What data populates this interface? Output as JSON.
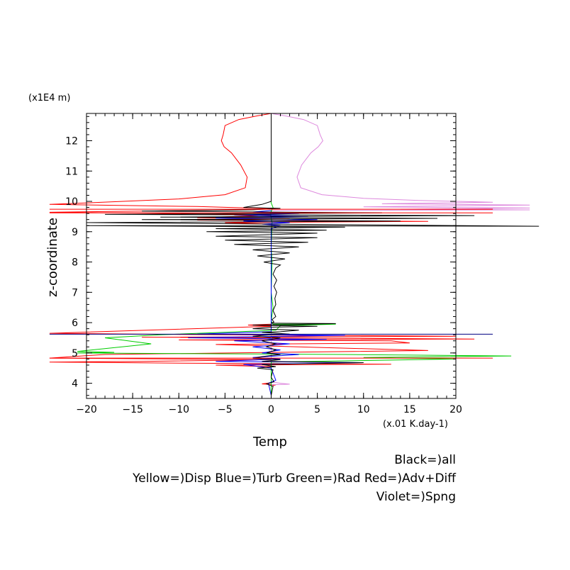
{
  "chart_data": {
    "type": "line",
    "y_unit_label": "(x1E4 m)",
    "x_unit_label": "(x.01 K.day-1)",
    "xlabel": "Temp",
    "ylabel": "z-coordinate",
    "xlim": [
      -20,
      20
    ],
    "ylim": [
      3.5,
      12.9
    ],
    "x_ticks": [
      "−20",
      "−15",
      "−10",
      "−5",
      "0",
      "5",
      "10",
      "15",
      "20"
    ],
    "x_tick_values": [
      -20,
      -15,
      -10,
      -5,
      0,
      5,
      10,
      15,
      20
    ],
    "y_ticks": [
      "4",
      "5",
      "6",
      "7",
      "8",
      "9",
      "10",
      "11",
      "12"
    ],
    "y_tick_values": [
      4,
      5,
      6,
      7,
      8,
      9,
      10,
      11,
      12
    ],
    "legend_lines": [
      "Black=)all",
      "Yellow=)Disp Blue=)Turb Green=)Rad Red=)Adv+Diff",
      "Violet=)Spng"
    ],
    "colors": {
      "all": "#000000",
      "turb": "#0000ff",
      "rad": "#00cc00",
      "adv": "#ff0000",
      "spng": "#dd88dd"
    },
    "series": [
      {
        "key": "adv",
        "color": "#ff0000",
        "points": [
          [
            0,
            12.9
          ],
          [
            -1.5,
            12.82
          ],
          [
            -3.5,
            12.7
          ],
          [
            -5,
            12.5
          ],
          [
            -5.2,
            12.2
          ],
          [
            -5.4,
            12.0
          ],
          [
            -5.1,
            11.8
          ],
          [
            -4.3,
            11.6
          ],
          [
            -3.3,
            11.2
          ],
          [
            -2.6,
            10.8
          ],
          [
            -2.8,
            10.45
          ],
          [
            -5,
            10.22
          ],
          [
            -10,
            10.08
          ],
          [
            -16,
            10.0
          ],
          [
            -20,
            9.95
          ],
          [
            -24,
            9.9
          ],
          [
            -8,
            9.83
          ],
          [
            0,
            9.76
          ],
          [
            -3,
            9.72
          ],
          [
            -14,
            9.68
          ],
          [
            -24,
            9.64
          ],
          [
            -10,
            9.6
          ],
          [
            0,
            9.55
          ],
          [
            -4,
            9.5
          ],
          [
            -8,
            9.46
          ],
          [
            2,
            9.42
          ],
          [
            -8,
            9.38
          ],
          [
            17,
            9.34
          ],
          [
            -5,
            9.3
          ],
          [
            0,
            9.25
          ],
          [
            0,
            5.95
          ],
          [
            -2.5,
            5.92
          ],
          [
            0,
            5.88
          ],
          [
            -24,
            5.65
          ],
          [
            -10,
            5.61
          ],
          [
            20,
            5.55
          ],
          [
            -14,
            5.52
          ],
          [
            22,
            5.46
          ],
          [
            -10,
            5.43
          ],
          [
            13,
            5.4
          ],
          [
            15,
            5.33
          ],
          [
            -6,
            5.28
          ],
          [
            17,
            5.08
          ],
          [
            -18,
            4.95
          ],
          [
            -24,
            4.83
          ],
          [
            0,
            4.78
          ],
          [
            -14,
            4.72
          ],
          [
            -24,
            4.7
          ],
          [
            -8,
            4.66
          ],
          [
            13,
            4.63
          ],
          [
            -6,
            4.6
          ],
          [
            0,
            4.55
          ],
          [
            0,
            4.02
          ],
          [
            -1,
            3.98
          ],
          [
            0.5,
            3.95
          ],
          [
            0,
            3.9
          ]
        ]
      },
      {
        "key": "spng",
        "color": "#dd88dd",
        "points": [
          [
            0,
            12.9
          ],
          [
            1.5,
            12.82
          ],
          [
            3.5,
            12.7
          ],
          [
            5,
            12.5
          ],
          [
            5.3,
            12.2
          ],
          [
            5.6,
            12.0
          ],
          [
            5.1,
            11.8
          ],
          [
            4.3,
            11.6
          ],
          [
            3.3,
            11.2
          ],
          [
            2.8,
            10.8
          ],
          [
            3.2,
            10.45
          ],
          [
            5.5,
            10.22
          ],
          [
            10,
            10.1
          ],
          [
            16,
            10.03
          ],
          [
            24,
            9.97
          ],
          [
            12,
            9.92
          ],
          [
            28,
            9.88
          ],
          [
            10,
            9.82
          ],
          [
            28,
            9.78
          ],
          [
            14,
            9.74
          ],
          [
            28,
            9.72
          ],
          [
            0,
            9.7
          ],
          [
            0,
            4.05
          ],
          [
            1,
            4.0
          ],
          [
            2,
            3.97
          ],
          [
            0,
            3.95
          ]
        ]
      },
      {
        "key": "rad",
        "color": "#00cc00",
        "points": [
          [
            0,
            12.9
          ],
          [
            0,
            9.95
          ],
          [
            0.2,
            9.8
          ],
          [
            -0.1,
            9.6
          ],
          [
            0.1,
            9.3
          ],
          [
            0,
            8.5
          ],
          [
            0.1,
            8.0
          ],
          [
            0,
            7.0
          ],
          [
            0.2,
            6.5
          ],
          [
            0,
            6.05
          ],
          [
            0.2,
            5.95
          ],
          [
            7,
            5.95
          ],
          [
            1,
            5.9
          ],
          [
            0.5,
            5.75
          ],
          [
            -12,
            5.6
          ],
          [
            -18,
            5.5
          ],
          [
            -13,
            5.3
          ],
          [
            -21,
            5.05
          ],
          [
            -17,
            5.02
          ],
          [
            -21,
            5.0
          ],
          [
            8,
            4.95
          ],
          [
            26,
            4.9
          ],
          [
            10,
            4.85
          ],
          [
            20,
            4.8
          ],
          [
            0,
            4.7
          ],
          [
            0,
            3.6
          ]
        ]
      },
      {
        "key": "turb",
        "color": "#0000ff",
        "points": [
          [
            0,
            9.7
          ],
          [
            -2,
            9.65
          ],
          [
            3,
            9.6
          ],
          [
            -4,
            9.55
          ],
          [
            4,
            9.5
          ],
          [
            -6,
            9.45
          ],
          [
            5,
            9.4
          ],
          [
            -3,
            9.35
          ],
          [
            2,
            9.3
          ],
          [
            -1,
            9.25
          ],
          [
            1,
            9.2
          ],
          [
            0,
            9.1
          ],
          [
            0,
            5.7
          ],
          [
            -8,
            5.62
          ],
          [
            8,
            5.58
          ],
          [
            -9,
            5.5
          ],
          [
            6,
            5.45
          ],
          [
            -4,
            5.4
          ],
          [
            2,
            5.3
          ],
          [
            -2,
            5.2
          ],
          [
            1,
            5.1
          ],
          [
            -1,
            5.0
          ],
          [
            3,
            4.95
          ],
          [
            -2,
            4.85
          ],
          [
            1,
            4.8
          ],
          [
            -6,
            4.72
          ],
          [
            10,
            4.68
          ],
          [
            -3,
            4.62
          ],
          [
            0,
            4.5
          ],
          [
            0.5,
            4.1
          ],
          [
            -0.3,
            4.0
          ],
          [
            0,
            3.6
          ]
        ]
      },
      {
        "key": "all",
        "color": "#000000",
        "points": [
          [
            0,
            12.9
          ],
          [
            0,
            10.0
          ],
          [
            -1,
            9.9
          ],
          [
            -3,
            9.8
          ],
          [
            1,
            9.77
          ],
          [
            -2,
            9.72
          ],
          [
            -14,
            9.68
          ],
          [
            12,
            9.62
          ],
          [
            -18,
            9.57
          ],
          [
            22,
            9.53
          ],
          [
            -12,
            9.48
          ],
          [
            18,
            9.44
          ],
          [
            -14,
            9.4
          ],
          [
            14,
            9.35
          ],
          [
            -20,
            9.3
          ],
          [
            29,
            9.18
          ],
          [
            -20,
            9.2
          ],
          [
            8,
            9.15
          ],
          [
            -6,
            9.1
          ],
          [
            6,
            9.05
          ],
          [
            -7,
            9.0
          ],
          [
            5,
            8.95
          ],
          [
            -6,
            8.85
          ],
          [
            5,
            8.8
          ],
          [
            -5,
            8.72
          ],
          [
            4,
            8.65
          ],
          [
            -4,
            8.58
          ],
          [
            3,
            8.5
          ],
          [
            -2,
            8.4
          ],
          [
            2,
            8.3
          ],
          [
            -1.5,
            8.2
          ],
          [
            1.5,
            8.1
          ],
          [
            -0.8,
            8.0
          ],
          [
            1,
            7.9
          ],
          [
            0.5,
            7.8
          ],
          [
            0.2,
            7.6
          ],
          [
            0.6,
            7.4
          ],
          [
            0.3,
            7.2
          ],
          [
            0.6,
            7.0
          ],
          [
            0.4,
            6.8
          ],
          [
            0.5,
            6.6
          ],
          [
            0.2,
            6.4
          ],
          [
            0.5,
            6.2
          ],
          [
            0.1,
            6.1
          ],
          [
            0.3,
            6.02
          ],
          [
            0,
            5.98
          ],
          [
            7,
            5.97
          ],
          [
            1,
            5.93
          ],
          [
            -2,
            5.92
          ],
          [
            5,
            5.88
          ],
          [
            0,
            5.85
          ],
          [
            -2,
            5.8
          ],
          [
            3,
            5.75
          ],
          [
            1,
            5.7
          ],
          [
            -1,
            5.68
          ],
          [
            2,
            5.62
          ],
          [
            0,
            5.6
          ],
          [
            -2,
            5.55
          ],
          [
            1,
            5.5
          ],
          [
            0,
            5.45
          ],
          [
            -1,
            5.4
          ],
          [
            0.5,
            5.3
          ],
          [
            -0.5,
            5.2
          ],
          [
            0.5,
            5.1
          ],
          [
            -0.5,
            5.0
          ],
          [
            1,
            4.95
          ],
          [
            -1,
            4.88
          ],
          [
            -2,
            4.82
          ],
          [
            1,
            4.78
          ],
          [
            -1,
            4.72
          ],
          [
            10,
            4.68
          ],
          [
            -1,
            4.62
          ],
          [
            0.5,
            4.55
          ],
          [
            -1.5,
            4.5
          ],
          [
            0.2,
            4.45
          ],
          [
            0,
            4.2
          ],
          [
            0.3,
            4.05
          ],
          [
            -0.5,
            3.98
          ],
          [
            0.2,
            3.9
          ],
          [
            0,
            3.6
          ]
        ]
      }
    ],
    "h_lines": [
      {
        "y": 5.62,
        "x1": -24,
        "x2": 24,
        "color": "#000080"
      },
      {
        "y": 9.62,
        "x1": -24,
        "x2": 24,
        "color": "#ff0000"
      },
      {
        "y": 9.74,
        "x1": -24,
        "x2": 24,
        "color": "#ff0000"
      },
      {
        "y": 4.83,
        "x1": -24,
        "x2": 24,
        "color": "#ff0000"
      }
    ]
  }
}
